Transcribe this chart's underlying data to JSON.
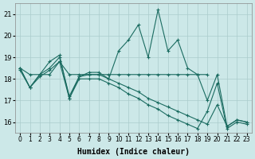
{
  "xlabel": "Humidex (Indice chaleur)",
  "background_color": "#cce8e8",
  "grid_color": "#aacccc",
  "line_color": "#1a6b60",
  "xlim": [
    -0.5,
    23.5
  ],
  "ylim": [
    15.5,
    21.5
  ],
  "yticks": [
    16,
    17,
    18,
    19,
    20,
    21
  ],
  "xticks": [
    0,
    1,
    2,
    3,
    4,
    5,
    6,
    7,
    8,
    9,
    10,
    11,
    12,
    13,
    14,
    15,
    16,
    17,
    18,
    19,
    20,
    21,
    22,
    23
  ],
  "series1": [
    18.5,
    17.6,
    18.2,
    18.8,
    19.1,
    17.1,
    18.1,
    18.3,
    18.3,
    18.0,
    19.3,
    19.8,
    20.5,
    19.0,
    21.2,
    19.3,
    19.8,
    18.5,
    18.2,
    17.0,
    18.2,
    15.8,
    16.1,
    16.0
  ],
  "series2": [
    18.5,
    18.2,
    18.2,
    18.2,
    18.8,
    18.2,
    18.2,
    18.2,
    18.2,
    18.2,
    18.2,
    18.2,
    18.2,
    18.2,
    18.2,
    18.2,
    18.2,
    18.2,
    18.2,
    18.2,
    null,
    null,
    null,
    null
  ],
  "series3": [
    18.5,
    17.6,
    18.2,
    18.5,
    19.0,
    17.2,
    18.1,
    18.2,
    18.2,
    18.0,
    17.8,
    17.6,
    17.4,
    17.1,
    16.9,
    16.7,
    16.5,
    16.3,
    16.1,
    15.9,
    16.8,
    15.8,
    16.1,
    16.0
  ],
  "series4": [
    18.4,
    17.6,
    18.1,
    18.4,
    18.8,
    17.1,
    18.0,
    18.0,
    18.0,
    17.8,
    17.6,
    17.3,
    17.1,
    16.8,
    16.6,
    16.3,
    16.1,
    15.9,
    15.7,
    16.5,
    17.8,
    15.7,
    16.0,
    15.9
  ]
}
